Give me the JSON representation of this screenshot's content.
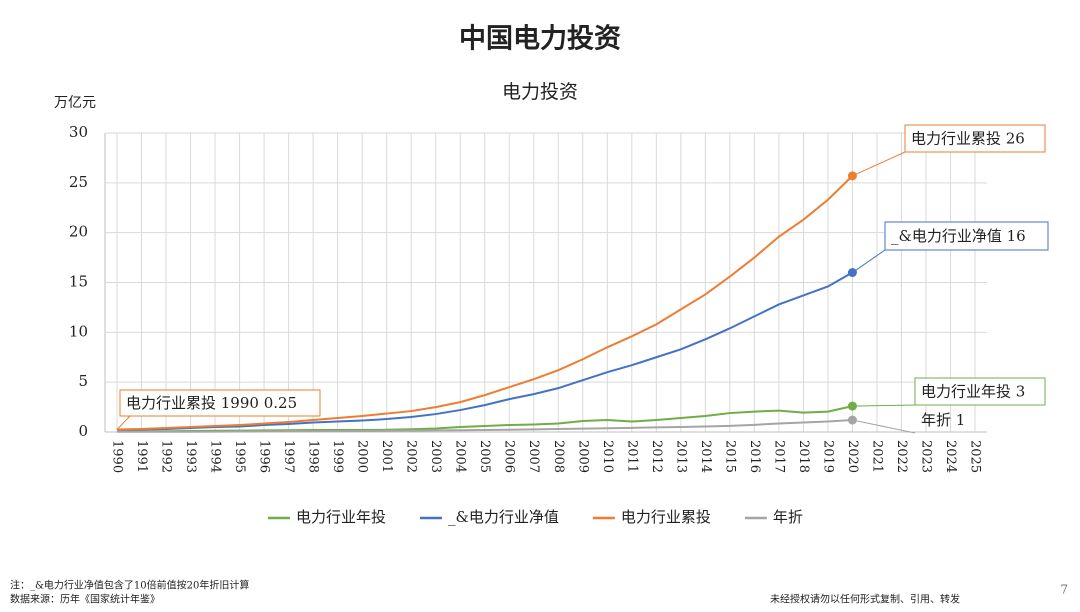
{
  "page_title": "中国电力投资",
  "chart_data": {
    "type": "line",
    "title": "电力投资",
    "ylabel": "万亿元",
    "x": [
      1990,
      1991,
      1992,
      1993,
      1994,
      1995,
      1996,
      1997,
      1998,
      1999,
      2000,
      2001,
      2002,
      2003,
      2004,
      2005,
      2006,
      2007,
      2008,
      2009,
      2010,
      2011,
      2012,
      2013,
      2014,
      2015,
      2016,
      2017,
      2018,
      2019,
      2020,
      2021,
      2022,
      2023,
      2024,
      2025
    ],
    "xlim": [
      1990,
      2025
    ],
    "xticks": [
      1990,
      1991,
      1992,
      1993,
      1994,
      1995,
      1996,
      1997,
      1998,
      1999,
      2000,
      2001,
      2002,
      2003,
      2004,
      2005,
      2006,
      2007,
      2008,
      2009,
      2010,
      2011,
      2012,
      2013,
      2014,
      2015,
      2016,
      2017,
      2018,
      2019,
      2020,
      2021,
      2022,
      2023,
      2024,
      2025
    ],
    "ylim": [
      0,
      30
    ],
    "yticks": [
      0,
      5,
      10,
      15,
      20,
      25,
      30
    ],
    "grid": true,
    "series": [
      {
        "name": "电力行业年投",
        "color": "#70ad47",
        "values": [
          0.05,
          0.06,
          0.08,
          0.1,
          0.12,
          0.14,
          0.16,
          0.17,
          0.2,
          0.2,
          0.2,
          0.22,
          0.28,
          0.35,
          0.5,
          0.6,
          0.7,
          0.75,
          0.85,
          1.1,
          1.2,
          1.05,
          1.2,
          1.4,
          1.6,
          1.9,
          2.05,
          2.15,
          1.95,
          2.05,
          2.6,
          null,
          null,
          null,
          null,
          null
        ]
      },
      {
        "name": "_&电力行业净值",
        "color": "#4472c4",
        "values": [
          0.2,
          0.25,
          0.3,
          0.4,
          0.5,
          0.55,
          0.7,
          0.8,
          0.95,
          1.05,
          1.15,
          1.3,
          1.5,
          1.8,
          2.2,
          2.7,
          3.3,
          3.8,
          4.4,
          5.2,
          6.0,
          6.7,
          7.5,
          8.3,
          9.3,
          10.4,
          11.6,
          12.8,
          13.7,
          14.6,
          16.0,
          null,
          null,
          null,
          null,
          null
        ]
      },
      {
        "name": "电力行业累投",
        "color": "#ed7d31",
        "values": [
          0.25,
          0.3,
          0.4,
          0.5,
          0.6,
          0.7,
          0.85,
          1.0,
          1.2,
          1.4,
          1.6,
          1.85,
          2.1,
          2.5,
          3.0,
          3.7,
          4.5,
          5.3,
          6.2,
          7.3,
          8.5,
          9.6,
          10.8,
          12.3,
          13.8,
          15.6,
          17.5,
          19.6,
          21.3,
          23.3,
          25.7,
          null,
          null,
          null,
          null,
          null
        ]
      },
      {
        "name": "年折",
        "color": "#a5a5a5",
        "values": [
          0.02,
          0.02,
          0.03,
          0.03,
          0.04,
          0.05,
          0.06,
          0.07,
          0.08,
          0.09,
          0.1,
          0.12,
          0.14,
          0.16,
          0.18,
          0.2,
          0.23,
          0.26,
          0.3,
          0.34,
          0.38,
          0.42,
          0.46,
          0.5,
          0.55,
          0.62,
          0.72,
          0.85,
          0.95,
          1.05,
          1.2,
          null,
          null,
          null,
          null,
          null
        ]
      }
    ],
    "annotations": [
      "电力行业累投 26",
      "_&电力行业净值 16",
      "电力行业年投 3",
      "年折 1",
      "电力行业累投 1990  0.25"
    ]
  },
  "footer": {
    "note": "注：_&电力行业净值包含了10倍前值按20年折旧计算",
    "source": "数据来源：历年《国家统计年鉴》",
    "copyright": "未经授权请勿以任何形式复制、引用、转发",
    "page": "7"
  }
}
